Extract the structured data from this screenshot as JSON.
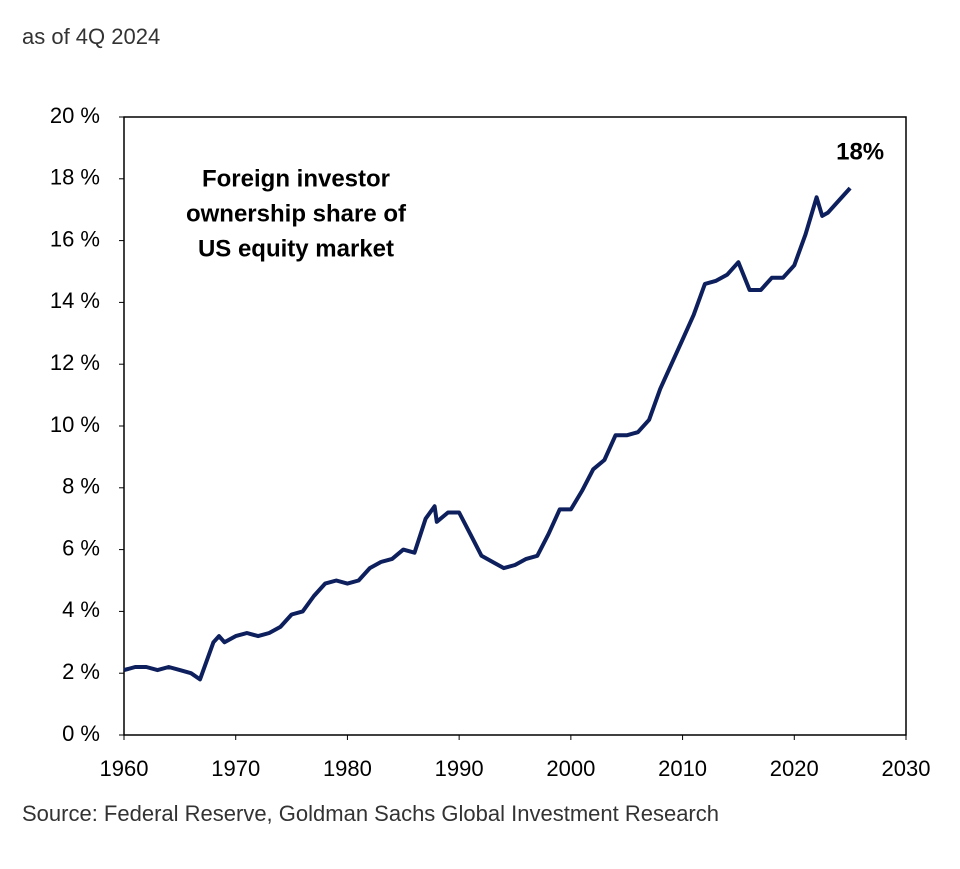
{
  "chart_data": {
    "type": "line",
    "subtitle": "as of 4Q 2024",
    "annotations": [
      "Foreign investor",
      "ownership share of",
      "US equity market"
    ],
    "end_label": "18%",
    "source": "Source: Federal Reserve, Goldman Sachs Global Investment Research",
    "x": [
      1960,
      1961,
      1962,
      1963,
      1964,
      1965,
      1966,
      1966.8,
      1968,
      1968.5,
      1969,
      1970,
      1971,
      1972,
      1973,
      1974,
      1975,
      1976,
      1977,
      1978,
      1979,
      1980,
      1981,
      1982,
      1983,
      1984,
      1985,
      1986,
      1987,
      1987.8,
      1988,
      1989,
      1990,
      1991,
      1992,
      1993,
      1994,
      1995,
      1996,
      1997,
      1998,
      1999,
      2000,
      2001,
      2002,
      2003,
      2004,
      2005,
      2006,
      2007,
      2008,
      2009,
      2010,
      2011,
      2012,
      2013,
      2014,
      2015,
      2016,
      2017,
      2018,
      2019,
      2020,
      2021,
      2022,
      2022.5,
      2023,
      2024,
      2025
    ],
    "series": [
      {
        "name": null,
        "color": "#0d1f5c",
        "values": [
          2.1,
          2.2,
          2.2,
          2.1,
          2.2,
          2.1,
          2.0,
          1.8,
          3.0,
          3.2,
          3.0,
          3.2,
          3.3,
          3.2,
          3.3,
          3.5,
          3.9,
          4.0,
          4.5,
          4.9,
          5.0,
          4.9,
          5.0,
          5.4,
          5.6,
          5.7,
          6.0,
          5.9,
          7.0,
          7.4,
          6.9,
          7.2,
          7.2,
          6.5,
          5.8,
          5.6,
          5.4,
          5.5,
          5.7,
          5.8,
          6.5,
          7.3,
          7.3,
          7.9,
          8.6,
          8.9,
          9.7,
          9.7,
          9.8,
          10.2,
          11.2,
          12.0,
          12.8,
          13.6,
          14.6,
          14.7,
          14.9,
          15.3,
          14.4,
          14.4,
          14.8,
          14.8,
          15.2,
          16.2,
          17.4,
          16.8,
          16.9,
          17.3,
          17.7
        ]
      }
    ],
    "xlim": [
      1960,
      2030
    ],
    "xticks": [
      1960,
      1970,
      1980,
      1990,
      2000,
      2010,
      2020,
      2030
    ],
    "ylim": [
      0,
      20
    ],
    "yticks": [
      {
        "value": 0,
        "label": "0 %"
      },
      {
        "value": 2,
        "label": "2 %"
      },
      {
        "value": 4,
        "label": "4 %"
      },
      {
        "value": 6,
        "label": "6 %"
      },
      {
        "value": 8,
        "label": "8 %"
      },
      {
        "value": 10,
        "label": "10 %"
      },
      {
        "value": 12,
        "label": "12 %"
      },
      {
        "value": 14,
        "label": "14 %"
      },
      {
        "value": 16,
        "label": "16 %"
      },
      {
        "value": 18,
        "label": "18 %"
      },
      {
        "value": 20,
        "label": "20 %"
      }
    ],
    "grid": false
  }
}
